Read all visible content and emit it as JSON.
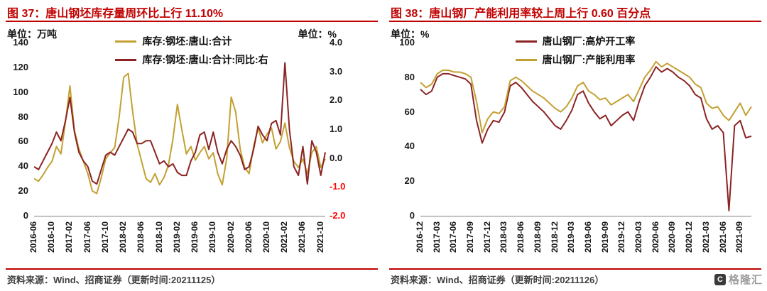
{
  "colors": {
    "title_red": "#C00000",
    "rule_red": "#C00000",
    "negative_tick": "#FF0000",
    "gold": "#C3A032",
    "dark_red": "#8B2423",
    "source_text": "#404040"
  },
  "watermark": {
    "icon_glyph": "C",
    "text": "格隆汇"
  },
  "chart_data": [
    {
      "type": "line",
      "title": "图 37：唐山钢坯库存量周环比上行 11.10%",
      "unit_left": "单位：万吨",
      "unit_right": "单位：%",
      "legend_position": "top-center",
      "grid": false,
      "x_start": "2016-06",
      "x_end": "2021-11",
      "x_tick_step": 4,
      "x_tick_labels": [
        "2016-06",
        "2016-10",
        "2017-02",
        "2017-06",
        "2017-10",
        "2018-02",
        "2018-06",
        "2018-10",
        "2019-02",
        "2019-06",
        "2019-10",
        "2020-02",
        "2020-06",
        "2020-10",
        "2021-02",
        "2021-06",
        "2021-10"
      ],
      "left_axis": {
        "label": "万吨",
        "min": 0,
        "max": 140,
        "ticks": [
          "140",
          "120",
          "100",
          "80",
          "60",
          "40",
          "20",
          "0"
        ]
      },
      "right_axis": {
        "label": "%",
        "min": -2,
        "max": 4,
        "ticks": [
          "4.0",
          "3.0",
          "2.0",
          "1.0",
          "0.0",
          "-1.0",
          "-2.0"
        ]
      },
      "series": [
        {
          "name": "库存:钢坯:唐山:合计",
          "axis": "left",
          "color": "#C3A032",
          "values": [
            30,
            28,
            33,
            39,
            44,
            56,
            50,
            76,
            105,
            69,
            54,
            44,
            34,
            20,
            18,
            31,
            46,
            51,
            55,
            80,
            112,
            115,
            84,
            58,
            44,
            30,
            27,
            34,
            25,
            31,
            41,
            62,
            90,
            69,
            50,
            56,
            45,
            51,
            56,
            46,
            51,
            34,
            25,
            46,
            96,
            84,
            54,
            39,
            34,
            56,
            71,
            59,
            66,
            71,
            54,
            60,
            75,
            55,
            44,
            39,
            46,
            34,
            51,
            56,
            39,
            46
          ]
        },
        {
          "name": "库存:钢坯:唐山:合计:同比:右",
          "axis": "right",
          "color": "#8B2423",
          "values": [
            -0.3,
            -0.4,
            -0.1,
            0.2,
            0.5,
            0.9,
            0.6,
            1.3,
            2.1,
            0.9,
            0.2,
            -0.1,
            -0.3,
            -0.8,
            -0.9,
            -0.4,
            0.1,
            0.2,
            0.1,
            0.4,
            0.7,
            1.0,
            0.9,
            0.5,
            0.5,
            0.6,
            0.6,
            0.2,
            -0.2,
            -0.1,
            -0.3,
            -0.2,
            -0.5,
            -0.6,
            -0.6,
            -0.1,
            0.2,
            0.8,
            0.9,
            0.3,
            0.9,
            0.2,
            -0.2,
            0.3,
            0.6,
            0.4,
            0.1,
            -0.4,
            -0.3,
            0.3,
            1.1,
            0.8,
            0.6,
            1.2,
            1.3,
            0.8,
            3.3,
            1.0,
            -0.3,
            -0.6,
            0.4,
            -0.9,
            0.6,
            0.2,
            -0.6,
            0.2
          ]
        }
      ],
      "source": "资料来源：Wind、招商证券（更新时间:20211125）"
    },
    {
      "type": "line",
      "title": "图 38：唐山钢厂产能利用率较上周上行 0.60 百分点",
      "unit_left": "单位：%",
      "legend_position": "top-center",
      "grid": false,
      "x_start": "2016-12",
      "x_end": "2021-11",
      "x_tick_step": 3,
      "x_tick_labels": [
        "2016-12",
        "2017-03",
        "2017-06",
        "2017-09",
        "2017-12",
        "2018-03",
        "2018-06",
        "2018-09",
        "2018-12",
        "2019-03",
        "2019-06",
        "2019-09",
        "2019-12",
        "2020-03",
        "2020-06",
        "2020-09",
        "2020-12",
        "2021-03",
        "2021-06",
        "2021-09"
      ],
      "left_axis": {
        "label": "%",
        "min": 0,
        "max": 100,
        "ticks": [
          "100",
          "80",
          "60",
          "40",
          "20",
          "0"
        ]
      },
      "series": [
        {
          "name": "唐山钢厂:高炉开工率",
          "axis": "left",
          "color": "#8B2423",
          "values": [
            73,
            70,
            72,
            80,
            82,
            82,
            81,
            80,
            79,
            76,
            55,
            42,
            50,
            55,
            54,
            60,
            75,
            77,
            74,
            70,
            66,
            63,
            60,
            56,
            52,
            50,
            55,
            61,
            70,
            72,
            65,
            60,
            56,
            58,
            52,
            55,
            58,
            60,
            55,
            66,
            75,
            80,
            86,
            83,
            85,
            83,
            80,
            78,
            75,
            70,
            68,
            56,
            50,
            52,
            48,
            3,
            52,
            55,
            45,
            46
          ]
        },
        {
          "name": "唐山钢厂:产能利用率",
          "axis": "left",
          "color": "#C3A032",
          "values": [
            77,
            74,
            76,
            82,
            84,
            84,
            83,
            83,
            82,
            80,
            66,
            48,
            56,
            60,
            59,
            63,
            78,
            80,
            78,
            75,
            72,
            70,
            68,
            65,
            62,
            60,
            63,
            68,
            75,
            77,
            72,
            70,
            67,
            68,
            64,
            66,
            68,
            70,
            66,
            73,
            80,
            84,
            89,
            86,
            88,
            86,
            84,
            82,
            80,
            76,
            74,
            65,
            62,
            63,
            58,
            55,
            60,
            65,
            58,
            63
          ]
        }
      ],
      "source": "资料来源：Wind、招商证券（更新时间:20211126）"
    }
  ]
}
